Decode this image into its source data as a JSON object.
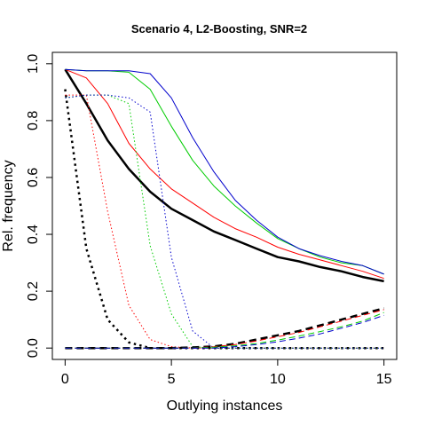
{
  "chart_data": {
    "type": "line",
    "title": "Scenario 4, L2-Boosting, SNR=2",
    "xlabel": "Outlying instances",
    "ylabel": "Rel. frequency",
    "xlim": [
      -0.6,
      15.6
    ],
    "ylim": [
      -0.04,
      1.04
    ],
    "xticks": [
      0,
      5,
      10,
      15
    ],
    "yticks": [
      0.0,
      0.2,
      0.4,
      0.6,
      0.8,
      1.0
    ],
    "grid": false,
    "legend": "none",
    "x": [
      0,
      1,
      2,
      3,
      4,
      5,
      6,
      7,
      8,
      9,
      10,
      11,
      12,
      13,
      14,
      15
    ],
    "series": [
      {
        "color": "#000000",
        "style": "solid",
        "width": 2.5,
        "values": [
          0.98,
          0.86,
          0.73,
          0.63,
          0.55,
          0.49,
          0.45,
          0.41,
          0.38,
          0.35,
          0.32,
          0.305,
          0.285,
          0.27,
          0.25,
          0.235
        ]
      },
      {
        "color": "#ff0000",
        "style": "solid",
        "width": 1,
        "values": [
          0.98,
          0.95,
          0.86,
          0.72,
          0.63,
          0.56,
          0.51,
          0.46,
          0.42,
          0.39,
          0.355,
          0.33,
          0.31,
          0.29,
          0.27,
          0.245
        ]
      },
      {
        "color": "#00cc00",
        "style": "solid",
        "width": 1,
        "values": [
          0.98,
          0.975,
          0.975,
          0.97,
          0.91,
          0.78,
          0.66,
          0.57,
          0.5,
          0.44,
          0.385,
          0.35,
          0.32,
          0.3,
          0.29,
          0.26
        ]
      },
      {
        "color": "#0000cc",
        "style": "solid",
        "width": 1,
        "values": [
          0.98,
          0.975,
          0.975,
          0.975,
          0.965,
          0.88,
          0.74,
          0.62,
          0.52,
          0.45,
          0.39,
          0.35,
          0.325,
          0.305,
          0.29,
          0.26
        ]
      },
      {
        "color": "#000000",
        "style": "dotted",
        "width": 2.5,
        "values": [
          0.91,
          0.35,
          0.1,
          0.02,
          0.0,
          0.0,
          0.0,
          0.0,
          0.0,
          0.0,
          0.0,
          0.0,
          0.0,
          0.0,
          0.0,
          0.0
        ]
      },
      {
        "color": "#ff0000",
        "style": "dotted",
        "width": 1,
        "values": [
          0.89,
          0.89,
          0.48,
          0.15,
          0.03,
          0.005,
          0.0,
          0.0,
          0.0,
          0.0,
          0.0,
          0.0,
          0.0,
          0.0,
          0.0,
          0.0
        ]
      },
      {
        "color": "#00cc00",
        "style": "dotted",
        "width": 1,
        "values": [
          0.88,
          0.89,
          0.89,
          0.86,
          0.36,
          0.12,
          0.005,
          0.0,
          0.0,
          0.0,
          0.0,
          0.0,
          0.0,
          0.0,
          0.0,
          0.0
        ]
      },
      {
        "color": "#0000cc",
        "style": "dotted",
        "width": 1,
        "values": [
          0.88,
          0.89,
          0.89,
          0.88,
          0.83,
          0.32,
          0.06,
          0.0,
          0.0,
          0.0,
          0.0,
          0.0,
          0.0,
          0.0,
          0.0,
          0.0
        ]
      },
      {
        "color": "#000000",
        "style": "dashed",
        "width": 2.5,
        "values": [
          0.0,
          0.0,
          0.0,
          0.0,
          0.0,
          0.0,
          0.002,
          0.006,
          0.015,
          0.03,
          0.045,
          0.06,
          0.08,
          0.1,
          0.12,
          0.14
        ]
      },
      {
        "color": "#ff0000",
        "style": "dashed",
        "width": 1,
        "values": [
          0.0,
          0.0,
          0.0,
          0.0,
          0.0,
          0.0,
          0.0,
          0.005,
          0.012,
          0.025,
          0.04,
          0.055,
          0.075,
          0.095,
          0.115,
          0.135
        ]
      },
      {
        "color": "#00cc00",
        "style": "dashed",
        "width": 1,
        "values": [
          0.0,
          0.0,
          0.0,
          0.0,
          0.0,
          0.0,
          0.0,
          0.003,
          0.008,
          0.016,
          0.028,
          0.042,
          0.058,
          0.075,
          0.095,
          0.125
        ]
      },
      {
        "color": "#0000cc",
        "style": "dashed",
        "width": 1,
        "values": [
          0.0,
          0.0,
          0.0,
          0.0,
          0.0,
          0.0,
          0.0,
          0.0,
          0.005,
          0.012,
          0.022,
          0.035,
          0.05,
          0.07,
          0.09,
          0.115
        ]
      }
    ]
  }
}
